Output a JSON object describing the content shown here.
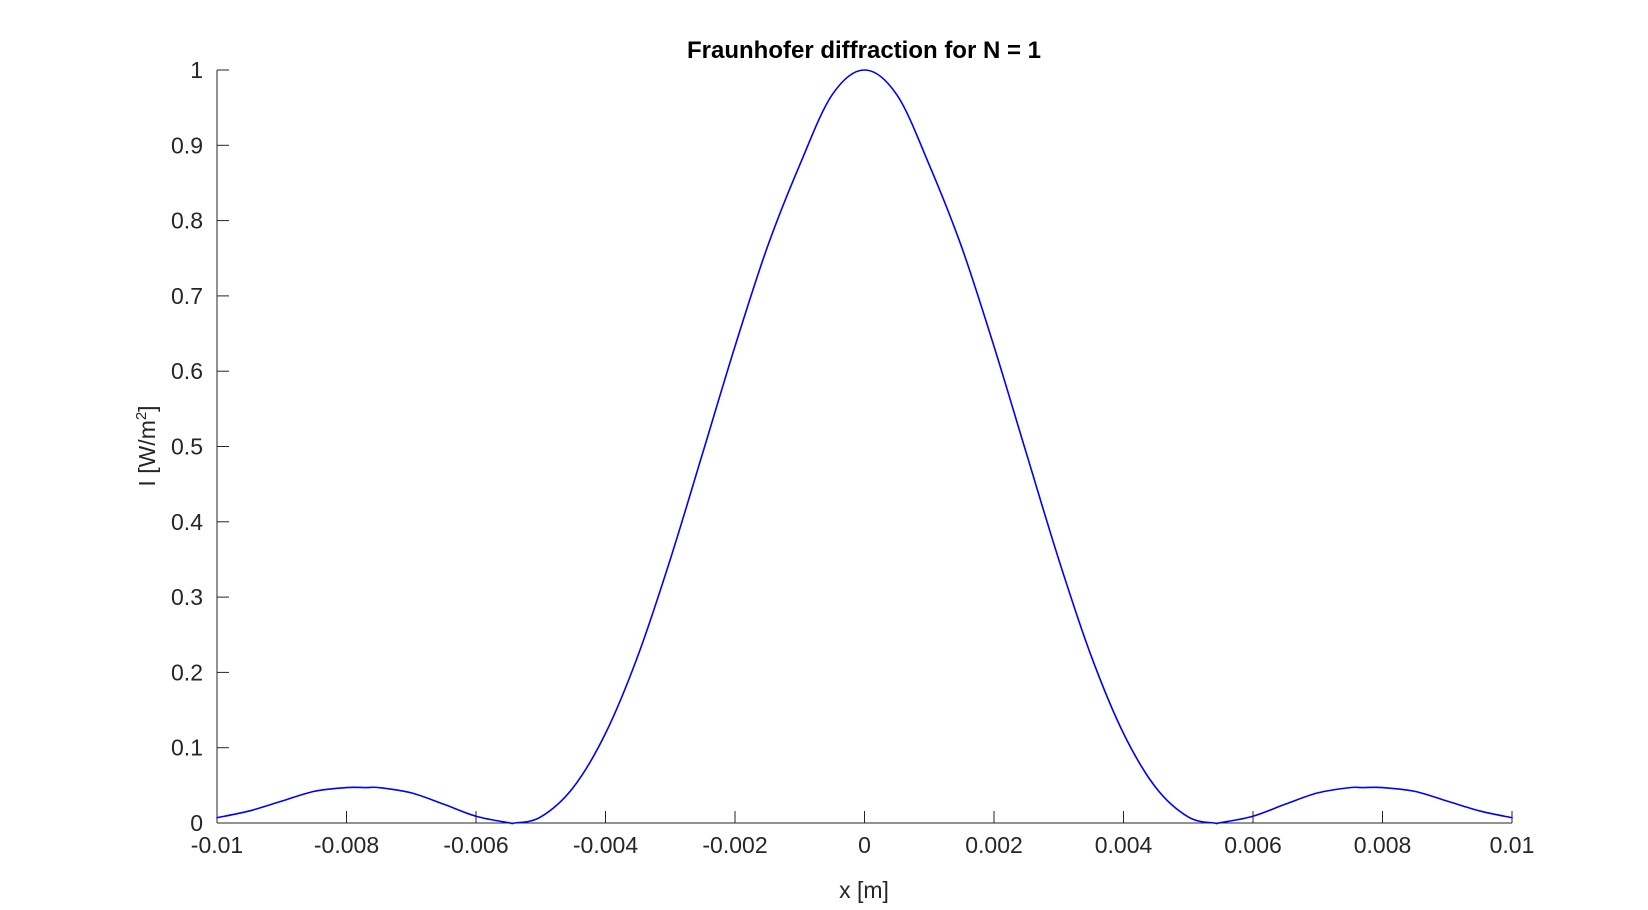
{
  "chart_data": {
    "type": "line",
    "title": "Fraunhofer diffraction for N = 1",
    "xlabel": "x [m]",
    "ylabel_main": "I [W/m",
    "ylabel_sup": "2",
    "ylabel_close": "]",
    "xlim": [
      -0.01,
      0.01
    ],
    "ylim": [
      0,
      1
    ],
    "grid": false,
    "x_ticks": [
      {
        "value": -0.01,
        "label": "-0.01"
      },
      {
        "value": -0.008,
        "label": "-0.008"
      },
      {
        "value": -0.006,
        "label": "-0.006"
      },
      {
        "value": -0.004,
        "label": "-0.004"
      },
      {
        "value": -0.002,
        "label": "-0.002"
      },
      {
        "value": 0,
        "label": "0"
      },
      {
        "value": 0.002,
        "label": "0.002"
      },
      {
        "value": 0.004,
        "label": "0.004"
      },
      {
        "value": 0.006,
        "label": "0.006"
      },
      {
        "value": 0.008,
        "label": "0.008"
      },
      {
        "value": 0.01,
        "label": "0.01"
      }
    ],
    "y_ticks": [
      {
        "value": 0,
        "label": "0"
      },
      {
        "value": 0.1,
        "label": "0.1"
      },
      {
        "value": 0.2,
        "label": "0.2"
      },
      {
        "value": 0.3,
        "label": "0.3"
      },
      {
        "value": 0.4,
        "label": "0.4"
      },
      {
        "value": 0.5,
        "label": "0.5"
      },
      {
        "value": 0.6,
        "label": "0.6"
      },
      {
        "value": 0.7,
        "label": "0.7"
      },
      {
        "value": 0.8,
        "label": "0.8"
      },
      {
        "value": 0.9,
        "label": "0.9"
      },
      {
        "value": 1,
        "label": "1"
      }
    ],
    "series": [
      {
        "color": "#0000ff",
        "x": [
          -0.01,
          -0.0095,
          -0.009,
          -0.0085,
          -0.008,
          -0.0077,
          -0.0075,
          -0.007,
          -0.0065,
          -0.006,
          -0.0055,
          -0.0054,
          -0.005,
          -0.0045,
          -0.004,
          -0.0035,
          -0.003,
          -0.0025,
          -0.002,
          -0.0015,
          -0.001,
          -0.0005,
          0,
          0.0005,
          0.001,
          0.0015,
          0.002,
          0.0025,
          0.003,
          0.0035,
          0.004,
          0.0045,
          0.005,
          0.0054,
          0.0055,
          0.006,
          0.0065,
          0.007,
          0.0075,
          0.0077,
          0.008,
          0.0085,
          0.009,
          0.0095,
          0.01
        ],
        "y": [
          0.007,
          0.016,
          0.029,
          0.042,
          0.047,
          0.047,
          0.047,
          0.04,
          0.025,
          0.009,
          0.0005,
          0.0,
          0.008,
          0.047,
          0.119,
          0.222,
          0.35,
          0.491,
          0.633,
          0.765,
          0.874,
          0.967,
          1.0,
          0.967,
          0.874,
          0.765,
          0.633,
          0.491,
          0.35,
          0.222,
          0.119,
          0.047,
          0.008,
          0.0,
          0.0005,
          0.009,
          0.025,
          0.04,
          0.047,
          0.047,
          0.047,
          0.042,
          0.029,
          0.016,
          0.007
        ]
      }
    ]
  }
}
